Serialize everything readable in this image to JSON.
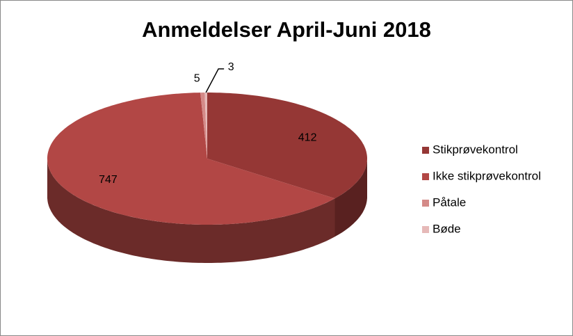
{
  "chart_data": {
    "type": "pie3d",
    "title": "Anmeldelser April-Juni 2018",
    "categories": [
      "Stikprøvekontrol",
      "Ikke stikprøvekontrol",
      "Påtale",
      "Bøde"
    ],
    "values": [
      412,
      747,
      5,
      3
    ],
    "colors": [
      "#953735",
      "#b24745",
      "#d48a88",
      "#e6b9b8"
    ],
    "legend": "right"
  }
}
